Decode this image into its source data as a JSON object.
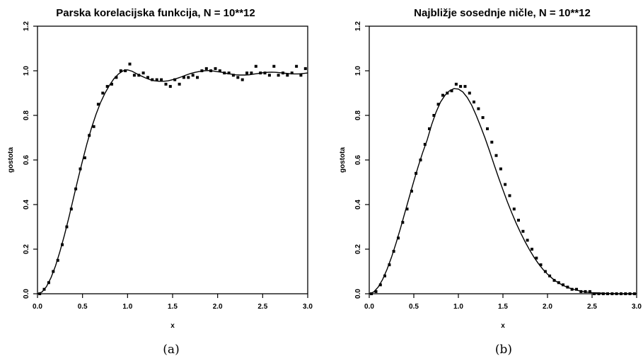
{
  "chart_data": [
    {
      "type": "scatter",
      "title": "Parska korelacijska funkcija, N = 10**12",
      "xlabel": "x",
      "ylabel": "gostota",
      "caption": "(a)",
      "xlim": [
        0,
        3
      ],
      "ylim": [
        0,
        1.2
      ],
      "xticks": [
        "0.0",
        "0.5",
        "1.0",
        "1.5",
        "2.0",
        "2.5",
        "3.0"
      ],
      "yticks": [
        "0.0",
        "0.2",
        "0.4",
        "0.6",
        "0.8",
        "1.0",
        "1.2"
      ],
      "grid": false,
      "series": [
        {
          "kind": "points",
          "x": [
            0.025,
            0.075,
            0.125,
            0.175,
            0.225,
            0.275,
            0.325,
            0.375,
            0.425,
            0.475,
            0.525,
            0.575,
            0.625,
            0.675,
            0.725,
            0.775,
            0.825,
            0.875,
            0.925,
            0.975,
            1.025,
            1.075,
            1.125,
            1.175,
            1.225,
            1.275,
            1.325,
            1.375,
            1.425,
            1.475,
            1.525,
            1.575,
            1.625,
            1.675,
            1.725,
            1.775,
            1.825,
            1.875,
            1.925,
            1.975,
            2.025,
            2.075,
            2.125,
            2.175,
            2.225,
            2.275,
            2.325,
            2.375,
            2.425,
            2.475,
            2.525,
            2.575,
            2.625,
            2.675,
            2.725,
            2.775,
            2.825,
            2.875,
            2.925,
            2.975
          ],
          "y": [
            0.0,
            0.02,
            0.05,
            0.1,
            0.15,
            0.22,
            0.3,
            0.38,
            0.47,
            0.56,
            0.61,
            0.71,
            0.75,
            0.85,
            0.9,
            0.93,
            0.94,
            0.97,
            1.0,
            1.0,
            1.03,
            0.98,
            0.98,
            0.99,
            0.97,
            0.96,
            0.96,
            0.96,
            0.94,
            0.93,
            0.96,
            0.94,
            0.97,
            0.97,
            0.98,
            0.97,
            1.0,
            1.01,
            1.0,
            1.01,
            1.0,
            0.99,
            0.99,
            0.98,
            0.97,
            0.96,
            0.99,
            0.99,
            1.02,
            0.99,
            0.99,
            0.98,
            1.02,
            0.98,
            0.99,
            0.98,
            0.99,
            1.02,
            0.98,
            1.01
          ]
        },
        {
          "kind": "curve",
          "x": [
            0.0,
            0.05,
            0.1,
            0.15,
            0.2,
            0.25,
            0.3,
            0.35,
            0.4,
            0.45,
            0.5,
            0.55,
            0.6,
            0.65,
            0.7,
            0.75,
            0.8,
            0.85,
            0.9,
            0.95,
            1.0,
            1.05,
            1.1,
            1.15,
            1.2,
            1.25,
            1.3,
            1.35,
            1.4,
            1.45,
            1.5,
            1.55,
            1.6,
            1.65,
            1.7,
            1.75,
            1.8,
            1.85,
            1.9,
            1.95,
            2.0,
            2.05,
            2.1,
            2.15,
            2.2,
            2.25,
            2.3,
            2.35,
            2.4,
            2.45,
            2.5,
            2.55,
            2.6,
            2.65,
            2.7,
            2.75,
            2.8,
            2.85,
            2.9,
            2.95,
            3.0
          ],
          "y": [
            0.0,
            0.008,
            0.032,
            0.072,
            0.125,
            0.19,
            0.264,
            0.345,
            0.43,
            0.515,
            0.597,
            0.674,
            0.744,
            0.805,
            0.857,
            0.9,
            0.936,
            0.965,
            0.986,
            1.0,
            1.004,
            0.998,
            0.987,
            0.977,
            0.968,
            0.96,
            0.955,
            0.953,
            0.953,
            0.955,
            0.96,
            0.966,
            0.973,
            0.981,
            0.988,
            0.993,
            0.997,
            1.0,
            1.001,
            0.999,
            0.996,
            0.993,
            0.988,
            0.985,
            0.982,
            0.981,
            0.981,
            0.982,
            0.985,
            0.988,
            0.991,
            0.993,
            0.994,
            0.993,
            0.991,
            0.989,
            0.987,
            0.986,
            0.986,
            0.988,
            0.99
          ]
        }
      ]
    },
    {
      "type": "scatter",
      "title": "Najbližje sosednje ničle, N = 10**12",
      "xlabel": "x",
      "ylabel": "gostota",
      "caption": "(b)",
      "xlim": [
        0,
        3
      ],
      "ylim": [
        0,
        1.2
      ],
      "xticks": [
        "0.0",
        "0.5",
        "1.0",
        "1.5",
        "2.0",
        "2.5",
        "3.0"
      ],
      "yticks": [
        "0.0",
        "0.2",
        "0.4",
        "0.6",
        "0.8",
        "1.0",
        "1.2"
      ],
      "grid": false,
      "series": [
        {
          "kind": "points",
          "x": [
            0.025,
            0.075,
            0.125,
            0.175,
            0.225,
            0.275,
            0.325,
            0.375,
            0.425,
            0.475,
            0.525,
            0.575,
            0.625,
            0.675,
            0.725,
            0.775,
            0.825,
            0.875,
            0.925,
            0.975,
            1.025,
            1.075,
            1.125,
            1.175,
            1.225,
            1.275,
            1.325,
            1.375,
            1.425,
            1.475,
            1.525,
            1.575,
            1.625,
            1.675,
            1.725,
            1.775,
            1.825,
            1.875,
            1.925,
            1.975,
            2.025,
            2.075,
            2.125,
            2.175,
            2.225,
            2.275,
            2.325,
            2.375,
            2.425,
            2.475,
            2.525,
            2.575,
            2.625,
            2.675,
            2.725,
            2.775,
            2.825,
            2.875,
            2.925,
            2.975
          ],
          "y": [
            0.0,
            0.01,
            0.04,
            0.08,
            0.13,
            0.19,
            0.25,
            0.32,
            0.38,
            0.46,
            0.54,
            0.6,
            0.67,
            0.74,
            0.8,
            0.85,
            0.89,
            0.9,
            0.91,
            0.94,
            0.93,
            0.93,
            0.9,
            0.86,
            0.83,
            0.79,
            0.74,
            0.68,
            0.62,
            0.56,
            0.49,
            0.44,
            0.38,
            0.33,
            0.28,
            0.24,
            0.2,
            0.16,
            0.13,
            0.1,
            0.08,
            0.06,
            0.05,
            0.04,
            0.03,
            0.02,
            0.02,
            0.01,
            0.01,
            0.01,
            0.0,
            0.0,
            0.0,
            0.0,
            0.0,
            0.0,
            0.0,
            0.0,
            0.0,
            0.0
          ]
        },
        {
          "kind": "curve",
          "x": [
            0.0,
            0.05,
            0.1,
            0.15,
            0.2,
            0.25,
            0.3,
            0.35,
            0.4,
            0.45,
            0.5,
            0.55,
            0.6,
            0.65,
            0.7,
            0.75,
            0.8,
            0.85,
            0.9,
            0.95,
            1.0,
            1.05,
            1.1,
            1.15,
            1.2,
            1.25,
            1.3,
            1.35,
            1.4,
            1.45,
            1.5,
            1.55,
            1.6,
            1.65,
            1.7,
            1.75,
            1.8,
            1.85,
            1.9,
            1.95,
            2.0,
            2.05,
            2.1,
            2.15,
            2.2,
            2.25,
            2.3,
            2.35,
            2.4,
            2.45,
            2.5,
            2.55,
            2.6,
            2.65,
            2.7,
            2.75,
            2.8,
            2.85,
            2.9,
            2.95,
            3.0
          ],
          "y": [
            0.0,
            0.008,
            0.03,
            0.064,
            0.11,
            0.164,
            0.226,
            0.293,
            0.364,
            0.435,
            0.505,
            0.572,
            0.634,
            0.69,
            0.758,
            0.815,
            0.86,
            0.89,
            0.91,
            0.92,
            0.918,
            0.905,
            0.88,
            0.845,
            0.8,
            0.75,
            0.697,
            0.64,
            0.58,
            0.522,
            0.466,
            0.412,
            0.362,
            0.315,
            0.272,
            0.232,
            0.196,
            0.163,
            0.134,
            0.109,
            0.088,
            0.07,
            0.055,
            0.043,
            0.033,
            0.025,
            0.019,
            0.014,
            0.01,
            0.007,
            0.005,
            0.004,
            0.003,
            0.002,
            0.001,
            0.001,
            0.0,
            0.0,
            0.0,
            0.0,
            0.0
          ]
        }
      ]
    }
  ]
}
